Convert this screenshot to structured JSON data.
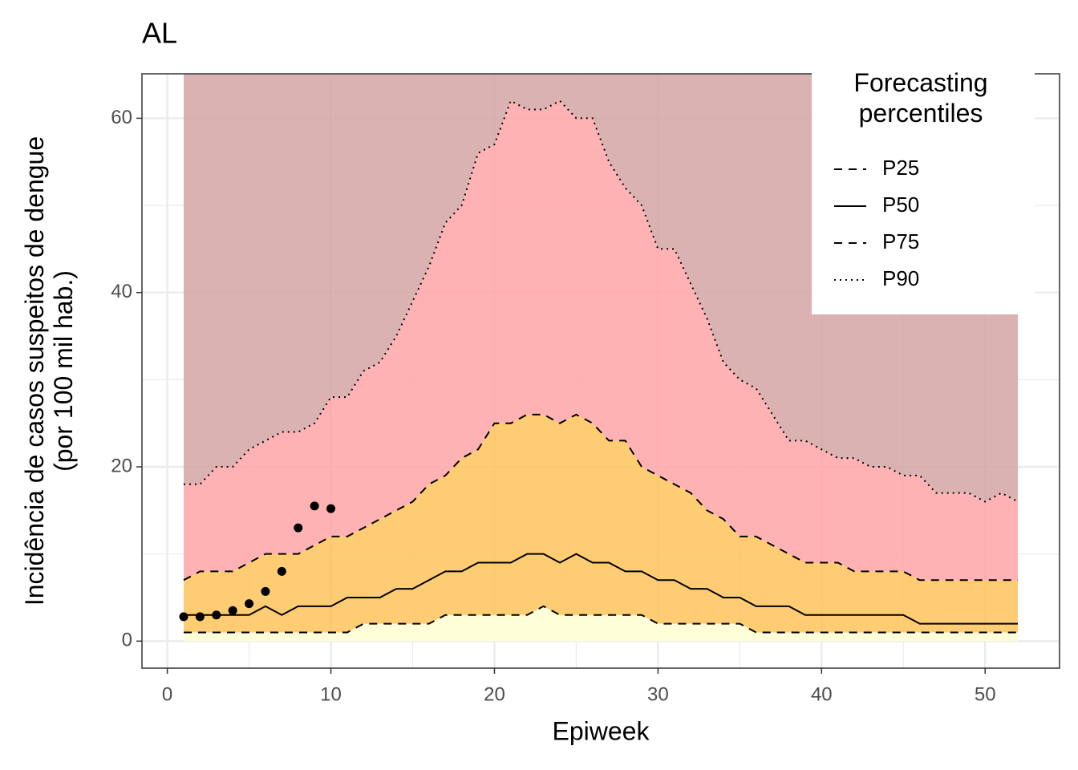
{
  "chart_data": {
    "type": "line",
    "title": "AL",
    "xlabel": "Epiweek",
    "ylabel": "Incidência de casos suspeitos de dengue\n(por 100 mil hab.)",
    "xlim": [
      -1.55,
      54.55
    ],
    "ylim": [
      -3.1,
      65.1
    ],
    "xticks": [
      0,
      10,
      20,
      30,
      40,
      50
    ],
    "yticks": [
      0,
      20,
      40,
      60
    ],
    "grid": true,
    "legend_title": "Forecasting\npercentiles",
    "legend_position": "top-right",
    "band_colors": [
      "#fefed8",
      "#fdc35a",
      "#ffa4a6",
      "#d4a5a5"
    ],
    "x": [
      1,
      2,
      3,
      4,
      5,
      6,
      7,
      8,
      9,
      10,
      11,
      12,
      13,
      14,
      15,
      16,
      17,
      18,
      19,
      20,
      21,
      22,
      23,
      24,
      25,
      26,
      27,
      28,
      29,
      30,
      31,
      32,
      33,
      34,
      35,
      36,
      37,
      38,
      39,
      40,
      41,
      42,
      43,
      44,
      45,
      46,
      47,
      48,
      49,
      50,
      51,
      52
    ],
    "series": [
      {
        "name": "P25",
        "color": "#000000",
        "dash": "10,8",
        "values": [
          1,
          1,
          1,
          1,
          1,
          1,
          1,
          1,
          1,
          1,
          1,
          2,
          2,
          2,
          2,
          2,
          3,
          3,
          3,
          3,
          3,
          3,
          4,
          3,
          3,
          3,
          3,
          3,
          3,
          2,
          2,
          2,
          2,
          2,
          2,
          1,
          1,
          1,
          1,
          1,
          1,
          1,
          1,
          1,
          1,
          1,
          1,
          1,
          1,
          1,
          1,
          1
        ]
      },
      {
        "name": "P50",
        "color": "#000000",
        "dash": "none",
        "values": [
          3,
          3,
          3,
          3,
          3,
          4,
          3,
          4,
          4,
          4,
          5,
          5,
          5,
          6,
          6,
          7,
          8,
          8,
          9,
          9,
          9,
          10,
          10,
          9,
          10,
          9,
          9,
          8,
          8,
          7,
          7,
          6,
          6,
          5,
          5,
          4,
          4,
          4,
          3,
          3,
          3,
          3,
          3,
          3,
          3,
          2,
          2,
          2,
          2,
          2,
          2,
          2
        ]
      },
      {
        "name": "P75",
        "color": "#000000",
        "dash": "10,8",
        "values": [
          7,
          8,
          8,
          8,
          9,
          10,
          10,
          10,
          11,
          12,
          12,
          13,
          14,
          15,
          16,
          18,
          19,
          21,
          22,
          25,
          25,
          26,
          26,
          25,
          26,
          25,
          23,
          23,
          20,
          19,
          18,
          17,
          15,
          14,
          12,
          12,
          11,
          10,
          9,
          9,
          9,
          8,
          8,
          8,
          8,
          7,
          7,
          7,
          7,
          7,
          7,
          7
        ]
      },
      {
        "name": "P90",
        "color": "#000000",
        "dash": "2,5",
        "values": [
          18,
          18,
          20,
          20,
          22,
          23,
          24,
          24,
          25,
          28,
          28,
          31,
          32,
          35,
          39,
          43,
          48,
          50,
          56,
          57,
          62,
          61,
          61,
          62,
          60,
          60,
          55,
          52,
          50,
          45,
          45,
          41,
          37,
          32,
          30,
          29,
          26,
          23,
          23,
          22,
          21,
          21,
          20,
          20,
          19,
          19,
          17,
          17,
          17,
          16,
          17,
          16
        ]
      }
    ],
    "points": {
      "color": "#000000",
      "x": [
        1,
        2,
        3,
        4,
        5,
        6,
        7,
        8,
        9,
        10
      ],
      "values": [
        2.8,
        2.8,
        3.0,
        3.5,
        4.3,
        5.7,
        8.0,
        13.0,
        15.5,
        15.2
      ]
    }
  }
}
